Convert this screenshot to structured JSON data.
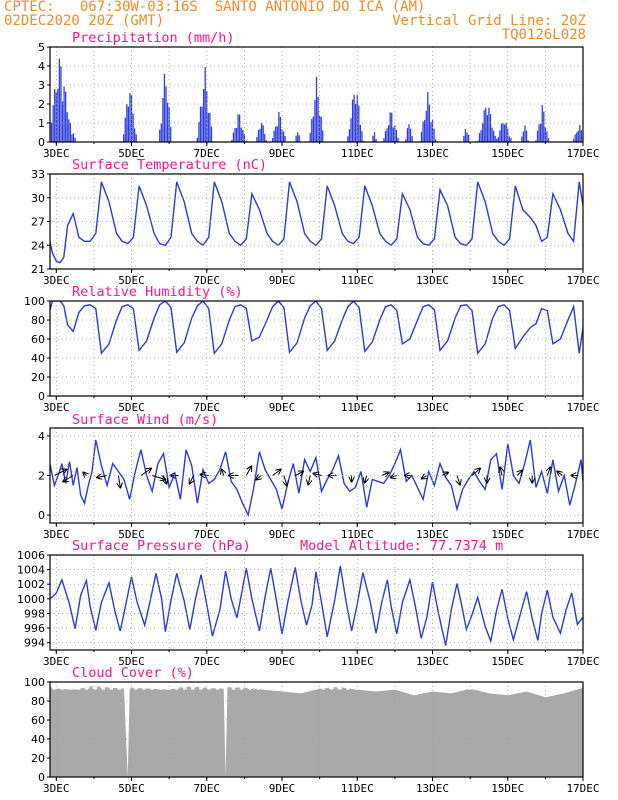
{
  "header": {
    "line1": "CPTEC:   067:30W-03:16S  SANTO ANTONIO DO ICA (AM)",
    "line2": "02DEC2020 20Z (GMT)",
    "grid_note": "Vertical Grid Line: 20Z",
    "run_id": "TQ0126L028"
  },
  "colors": {
    "header": "#f08c28",
    "title": "#ff1493",
    "series": "#2b3bdc",
    "cloud": "#a9a9a9"
  },
  "chart_data": [
    {
      "id": "precip",
      "type": "bar",
      "title": "Precipitation (mm/h)",
      "extra": "",
      "xlabels": [
        "3DEC",
        "5DEC",
        "7DEC",
        "9DEC",
        "11DEC",
        "13DEC",
        "15DEC",
        "17DEC"
      ],
      "ylim": [
        0,
        5
      ],
      "yticks": [
        0,
        1,
        2,
        3,
        4,
        5
      ],
      "grid": "dotted",
      "x_start_day": 2.833,
      "x_end_day": 17.0,
      "step_hours": 1,
      "bursts": [
        {
          "day": 2.86,
          "w": 0.25,
          "peak": 1.3
        },
        {
          "day": 3.1,
          "w": 0.35,
          "peak": 4.7
        },
        {
          "day": 3.45,
          "w": 0.1,
          "peak": 0.5
        },
        {
          "day": 4.95,
          "w": 0.2,
          "peak": 3.3
        },
        {
          "day": 5.9,
          "w": 0.18,
          "peak": 4.2
        },
        {
          "day": 6.95,
          "w": 0.22,
          "peak": 4.1
        },
        {
          "day": 7.85,
          "w": 0.2,
          "peak": 1.7
        },
        {
          "day": 8.45,
          "w": 0.15,
          "peak": 1.3
        },
        {
          "day": 8.92,
          "w": 0.2,
          "peak": 1.7
        },
        {
          "day": 9.42,
          "w": 0.08,
          "peak": 0.8
        },
        {
          "day": 9.92,
          "w": 0.2,
          "peak": 3.5
        },
        {
          "day": 10.95,
          "w": 0.22,
          "peak": 3.4
        },
        {
          "day": 11.45,
          "w": 0.08,
          "peak": 0.6
        },
        {
          "day": 11.9,
          "w": 0.22,
          "peak": 1.8
        },
        {
          "day": 12.38,
          "w": 0.1,
          "peak": 1.4
        },
        {
          "day": 12.88,
          "w": 0.22,
          "peak": 2.7
        },
        {
          "day": 13.9,
          "w": 0.1,
          "peak": 1.0
        },
        {
          "day": 14.45,
          "w": 0.25,
          "peak": 2.4
        },
        {
          "day": 14.9,
          "w": 0.22,
          "peak": 1.4
        },
        {
          "day": 15.45,
          "w": 0.1,
          "peak": 1.2
        },
        {
          "day": 15.92,
          "w": 0.18,
          "peak": 2.1
        },
        {
          "day": 16.9,
          "w": 0.18,
          "peak": 1.0
        }
      ]
    },
    {
      "id": "temp",
      "type": "line",
      "title": "Surface Temperature (nC)",
      "extra": "",
      "xlabels": [
        "3DEC",
        "5DEC",
        "7DEC",
        "9DEC",
        "11DEC",
        "13DEC",
        "15DEC",
        "17DEC"
      ],
      "ylim": [
        21,
        33
      ],
      "yticks": [
        21,
        24,
        27,
        30,
        33
      ],
      "grid": "dotted",
      "x": [
        2.83,
        2.9,
        3.0,
        3.1,
        3.2,
        3.3,
        3.45,
        3.6,
        3.75,
        3.9,
        4.05,
        4.2,
        4.4,
        4.6,
        4.75,
        4.9,
        5.05,
        5.2,
        5.4,
        5.6,
        5.75,
        5.9,
        6.05,
        6.2,
        6.4,
        6.6,
        6.75,
        6.9,
        7.05,
        7.2,
        7.4,
        7.6,
        7.75,
        7.9,
        8.05,
        8.2,
        8.4,
        8.6,
        8.75,
        8.9,
        9.05,
        9.2,
        9.4,
        9.6,
        9.75,
        9.9,
        10.05,
        10.2,
        10.4,
        10.6,
        10.75,
        10.9,
        11.05,
        11.2,
        11.4,
        11.6,
        11.75,
        11.9,
        12.05,
        12.2,
        12.4,
        12.6,
        12.75,
        12.9,
        13.05,
        13.2,
        13.4,
        13.6,
        13.75,
        13.9,
        14.05,
        14.2,
        14.4,
        14.6,
        14.75,
        14.9,
        15.05,
        15.2,
        15.4,
        15.6,
        15.75,
        15.9,
        16.05,
        16.2,
        16.4,
        16.6,
        16.75,
        16.9,
        17.0
      ],
      "y": [
        24.5,
        23.0,
        22.0,
        21.8,
        22.5,
        26.5,
        28.0,
        25.0,
        24.5,
        24.5,
        25.5,
        32.0,
        29.5,
        25.5,
        24.5,
        24.2,
        25.0,
        31.5,
        29.0,
        25.5,
        24.2,
        24.0,
        25.0,
        32.0,
        29.5,
        25.5,
        24.5,
        24.0,
        25.0,
        32.0,
        29.5,
        25.5,
        24.5,
        24.0,
        24.8,
        30.5,
        28.5,
        25.5,
        24.5,
        24.0,
        24.8,
        32.0,
        29.5,
        25.5,
        24.5,
        24.0,
        24.8,
        31.5,
        29.0,
        25.5,
        24.5,
        24.2,
        25.0,
        31.5,
        29.0,
        25.5,
        24.5,
        24.0,
        24.8,
        30.5,
        28.5,
        25.0,
        24.2,
        24.0,
        24.8,
        31.0,
        29.0,
        25.0,
        24.2,
        24.0,
        24.8,
        32.0,
        29.5,
        25.5,
        24.5,
        24.0,
        24.8,
        31.5,
        28.5,
        27.5,
        26.5,
        24.5,
        25.0,
        30.5,
        28.5,
        25.5,
        24.5,
        32.0,
        29.0
      ]
    },
    {
      "id": "rh",
      "type": "line",
      "title": "Relative Humidity (%)",
      "extra": "",
      "xlabels": [
        "3DEC",
        "5DEC",
        "7DEC",
        "9DEC",
        "11DEC",
        "13DEC",
        "15DEC",
        "17DEC"
      ],
      "ylim": [
        0,
        100
      ],
      "yticks": [
        0,
        20,
        40,
        60,
        80,
        100
      ],
      "grid": "dotted",
      "x": [
        2.83,
        2.9,
        3.0,
        3.1,
        3.2,
        3.3,
        3.45,
        3.6,
        3.75,
        3.9,
        4.05,
        4.2,
        4.4,
        4.6,
        4.75,
        4.9,
        5.05,
        5.2,
        5.4,
        5.6,
        5.75,
        5.9,
        6.05,
        6.2,
        6.4,
        6.6,
        6.75,
        6.9,
        7.05,
        7.2,
        7.4,
        7.6,
        7.75,
        7.9,
        8.05,
        8.2,
        8.4,
        8.6,
        8.75,
        8.9,
        9.05,
        9.2,
        9.4,
        9.6,
        9.75,
        9.9,
        10.05,
        10.2,
        10.4,
        10.6,
        10.75,
        10.9,
        11.05,
        11.2,
        11.4,
        11.6,
        11.75,
        11.9,
        12.05,
        12.2,
        12.4,
        12.6,
        12.75,
        12.9,
        13.05,
        13.2,
        13.4,
        13.6,
        13.75,
        13.9,
        14.05,
        14.2,
        14.4,
        14.6,
        14.75,
        14.9,
        15.05,
        15.2,
        15.4,
        15.6,
        15.75,
        15.9,
        16.05,
        16.2,
        16.4,
        16.6,
        16.75,
        16.9,
        17.0
      ],
      "y": [
        90,
        100,
        100,
        100,
        95,
        75,
        68,
        88,
        95,
        96,
        92,
        45,
        55,
        80,
        94,
        96,
        92,
        48,
        58,
        82,
        96,
        100,
        93,
        46,
        56,
        82,
        95,
        100,
        92,
        45,
        55,
        80,
        94,
        96,
        92,
        58,
        62,
        80,
        94,
        100,
        93,
        46,
        56,
        82,
        95,
        100,
        92,
        48,
        58,
        80,
        94,
        100,
        93,
        47,
        57,
        80,
        94,
        96,
        90,
        55,
        60,
        80,
        94,
        96,
        91,
        48,
        58,
        82,
        95,
        96,
        90,
        45,
        55,
        82,
        94,
        96,
        90,
        50,
        62,
        72,
        76,
        92,
        90,
        55,
        60,
        80,
        94,
        45,
        72
      ]
    },
    {
      "id": "wind",
      "type": "line",
      "title": "Surface Wind (m/s)",
      "extra": "",
      "xlabels": [
        "3DEC",
        "5DEC",
        "7DEC",
        "9DEC",
        "11DEC",
        "13DEC",
        "15DEC",
        "17DEC"
      ],
      "ylim": [
        -0.4,
        4.4
      ],
      "yticks": [
        0,
        2,
        4
      ],
      "grid": "dotted",
      "x": [
        2.83,
        2.95,
        3.05,
        3.15,
        3.25,
        3.35,
        3.45,
        3.55,
        3.65,
        3.75,
        3.85,
        3.95,
        4.05,
        4.2,
        4.35,
        4.5,
        4.65,
        4.8,
        4.95,
        5.1,
        5.25,
        5.4,
        5.55,
        5.7,
        5.85,
        6.0,
        6.15,
        6.3,
        6.45,
        6.6,
        6.75,
        6.9,
        7.05,
        7.2,
        7.35,
        7.5,
        7.65,
        7.8,
        7.95,
        8.1,
        8.25,
        8.4,
        8.55,
        8.7,
        8.85,
        9.0,
        9.15,
        9.3,
        9.45,
        9.6,
        9.75,
        9.9,
        10.05,
        10.2,
        10.35,
        10.5,
        10.65,
        10.8,
        10.95,
        11.1,
        11.25,
        11.4,
        11.55,
        11.7,
        11.85,
        12.0,
        12.15,
        12.3,
        12.45,
        12.6,
        12.75,
        12.9,
        13.05,
        13.2,
        13.35,
        13.5,
        13.65,
        13.8,
        13.95,
        14.1,
        14.25,
        14.4,
        14.55,
        14.7,
        14.85,
        15.0,
        15.15,
        15.3,
        15.45,
        15.6,
        15.75,
        15.9,
        16.05,
        16.2,
        16.35,
        16.5,
        16.65,
        16.8,
        16.95,
        17.0
      ],
      "y": [
        2.6,
        1.5,
        2.0,
        2.6,
        1.6,
        2.7,
        1.5,
        2.4,
        1.0,
        0.6,
        1.5,
        2.2,
        3.8,
        2.5,
        1.5,
        2.6,
        2.2,
        1.8,
        0.8,
        2.2,
        3.3,
        2.0,
        1.2,
        2.6,
        3.1,
        1.4,
        2.1,
        0.8,
        3.3,
        2.5,
        0.6,
        2.3,
        1.6,
        1.8,
        2.3,
        3.2,
        1.7,
        1.3,
        0.6,
        0.0,
        1.4,
        3.2,
        2.3,
        1.8,
        1.3,
        0.3,
        1.6,
        2.6,
        1.1,
        2.8,
        2.2,
        2.9,
        1.2,
        1.8,
        2.3,
        3.0,
        1.6,
        1.2,
        1.4,
        2.2,
        0.4,
        1.8,
        1.7,
        1.6,
        2.0,
        2.6,
        3.3,
        1.7,
        2.0,
        1.4,
        0.8,
        2.2,
        1.5,
        2.6,
        1.9,
        1.5,
        0.3,
        1.3,
        1.8,
        2.2,
        1.7,
        1.3,
        2.8,
        3.1,
        1.3,
        3.6,
        2.0,
        1.6,
        2.6,
        3.8,
        1.4,
        2.2,
        1.1,
        2.8,
        1.2,
        2.0,
        0.5,
        1.6,
        2.8,
        1.7
      ],
      "arrows": [
        {
          "day": 2.95,
          "u": 1.2,
          "v": 0.6
        },
        {
          "day": 3.45,
          "u": -1.0,
          "v": -0.6
        },
        {
          "day": 3.8,
          "u": -0.3,
          "v": 0.3
        },
        {
          "day": 4.35,
          "u": -1.0,
          "v": -0.2
        },
        {
          "day": 4.65,
          "u": 0.2,
          "v": -1.2
        },
        {
          "day": 5.25,
          "u": 1.0,
          "v": 0.7
        },
        {
          "day": 5.55,
          "u": 1.3,
          "v": -0.4
        },
        {
          "day": 5.85,
          "u": 0.3,
          "v": -0.8
        },
        {
          "day": 6.25,
          "u": -0.8,
          "v": 0.0
        },
        {
          "day": 6.65,
          "u": -0.4,
          "v": -0.8
        },
        {
          "day": 7.05,
          "u": -0.8,
          "v": 0.1
        },
        {
          "day": 7.45,
          "u": -0.2,
          "v": 0.6
        },
        {
          "day": 7.85,
          "u": -1.0,
          "v": 0.0
        },
        {
          "day": 8.05,
          "u": 0.5,
          "v": 0.9
        },
        {
          "day": 8.45,
          "u": -0.5,
          "v": -0.4
        },
        {
          "day": 8.75,
          "u": 0.8,
          "v": 0.6
        },
        {
          "day": 9.05,
          "u": 0.3,
          "v": -1.0
        },
        {
          "day": 9.35,
          "u": 0.8,
          "v": 0.4
        },
        {
          "day": 9.75,
          "u": -0.2,
          "v": -0.9
        },
        {
          "day": 10.05,
          "u": -0.8,
          "v": 0.2
        },
        {
          "day": 10.45,
          "u": -0.8,
          "v": 0.0
        },
        {
          "day": 10.85,
          "u": 0.0,
          "v": -0.6
        },
        {
          "day": 11.25,
          "u": -0.2,
          "v": -0.7
        },
        {
          "day": 11.65,
          "u": 0.7,
          "v": 0.3
        },
        {
          "day": 12.05,
          "u": -0.6,
          "v": -0.2
        },
        {
          "day": 12.45,
          "u": -0.7,
          "v": 0.0
        },
        {
          "day": 12.85,
          "u": -0.5,
          "v": -0.3
        },
        {
          "day": 13.25,
          "u": 0.6,
          "v": 0.3
        },
        {
          "day": 13.65,
          "u": 0.3,
          "v": -0.9
        },
        {
          "day": 14.05,
          "u": 0.8,
          "v": 0.7
        },
        {
          "day": 14.45,
          "u": 0.0,
          "v": -0.7
        },
        {
          "day": 14.85,
          "u": -0.2,
          "v": 0.8
        },
        {
          "day": 15.25,
          "u": 0.5,
          "v": 0.5
        },
        {
          "day": 15.65,
          "u": 0.0,
          "v": -0.7
        },
        {
          "day": 16.05,
          "u": 0.3,
          "v": 0.8
        },
        {
          "day": 16.45,
          "u": -0.5,
          "v": 0.4
        },
        {
          "day": 16.85,
          "u": -0.6,
          "v": 0.0
        }
      ]
    },
    {
      "id": "press",
      "type": "line",
      "title": "Surface Pressure (hPa)",
      "extra": "Model Altitude: 77.7374 m",
      "xlabels": [
        "3DEC",
        "5DEC",
        "7DEC",
        "9DEC",
        "11DEC",
        "13DEC",
        "15DEC",
        "17DEC"
      ],
      "ylim": [
        993,
        1006
      ],
      "yticks": [
        994,
        996,
        998,
        1000,
        1002,
        1004,
        1006
      ],
      "grid": "dotted",
      "x": [
        2.83,
        2.9,
        3.0,
        3.15,
        3.35,
        3.5,
        3.65,
        3.8,
        3.9,
        4.05,
        4.2,
        4.4,
        4.55,
        4.7,
        4.85,
        5.0,
        5.15,
        5.35,
        5.5,
        5.65,
        5.8,
        5.9,
        6.05,
        6.2,
        6.4,
        6.55,
        6.7,
        6.85,
        7.0,
        7.15,
        7.35,
        7.5,
        7.65,
        7.8,
        7.9,
        8.05,
        8.2,
        8.4,
        8.55,
        8.7,
        8.85,
        9.0,
        9.15,
        9.35,
        9.5,
        9.65,
        9.8,
        9.9,
        10.05,
        10.2,
        10.4,
        10.55,
        10.7,
        10.85,
        11.0,
        11.15,
        11.35,
        11.5,
        11.65,
        11.8,
        11.9,
        12.05,
        12.2,
        12.4,
        12.55,
        12.7,
        12.85,
        13.0,
        13.15,
        13.35,
        13.5,
        13.65,
        13.8,
        13.9,
        14.05,
        14.2,
        14.4,
        14.55,
        14.7,
        14.85,
        15.0,
        15.15,
        15.35,
        15.5,
        15.65,
        15.8,
        15.9,
        16.05,
        16.2,
        16.4,
        16.55,
        16.7,
        16.85,
        17.0
      ],
      "y": [
        1000.0,
        1000.3,
        1000.8,
        1002.6,
        999.3,
        995.9,
        1000.5,
        1002.5,
        999.0,
        995.7,
        999.5,
        1002.2,
        998.5,
        995.6,
        999.3,
        1003.0,
        999.5,
        996.4,
        999.8,
        1003.5,
        1000.0,
        995.5,
        999.8,
        1003.5,
        999.7,
        995.8,
        1000.0,
        1003.3,
        999.2,
        994.9,
        998.5,
        1003.8,
        1000.0,
        997.4,
        1000.0,
        1004.2,
        1000.0,
        995.6,
        1000.3,
        1004.2,
        999.8,
        995.2,
        999.5,
        1004.3,
        999.8,
        996.4,
        999.2,
        1003.7,
        999.5,
        994.8,
        999.8,
        1004.5,
        999.7,
        995.6,
        999.3,
        1003.6,
        999.5,
        995.3,
        999.5,
        1002.6,
        999.0,
        995.2,
        999.5,
        1002.6,
        998.8,
        994.6,
        997.5,
        1002.3,
        998.2,
        993.6,
        998.5,
        1002.1,
        998.5,
        995.8,
        997.8,
        1000.2,
        996.2,
        994.2,
        998.4,
        1001.3,
        997.3,
        994.4,
        998.2,
        1001.0,
        997.3,
        994.3,
        998.0,
        1001.2,
        997.5,
        995.3,
        998.5,
        1000.8,
        996.5,
        997.5
      ]
    },
    {
      "id": "cloud",
      "type": "area",
      "title": "Cloud Cover (%)",
      "extra": "",
      "xlabels": [
        "3DEC",
        "5DEC",
        "7DEC",
        "9DEC",
        "11DEC",
        "13DEC",
        "15DEC",
        "17DEC"
      ],
      "ylim": [
        0,
        100
      ],
      "yticks": [
        0,
        20,
        40,
        60,
        80,
        100
      ],
      "grid": "dotted",
      "x": [
        2.83,
        3.0,
        3.5,
        4.0,
        4.5,
        4.8,
        4.9,
        4.95,
        5.0,
        5.5,
        6.0,
        6.5,
        7.0,
        7.45,
        7.5,
        7.55,
        8.0,
        8.5,
        9.0,
        9.5,
        10.0,
        10.5,
        11.0,
        11.5,
        12.0,
        12.5,
        13.0,
        13.5,
        14.0,
        14.5,
        15.0,
        15.5,
        16.0,
        16.5,
        17.0
      ],
      "y": [
        95,
        93,
        92,
        96,
        94,
        93,
        0,
        92,
        94,
        93,
        92,
        96,
        94,
        93,
        0,
        95,
        94,
        92,
        90,
        88,
        93,
        95,
        92,
        90,
        92,
        86,
        90,
        88,
        93,
        88,
        86,
        90,
        84,
        88,
        94
      ]
    }
  ]
}
